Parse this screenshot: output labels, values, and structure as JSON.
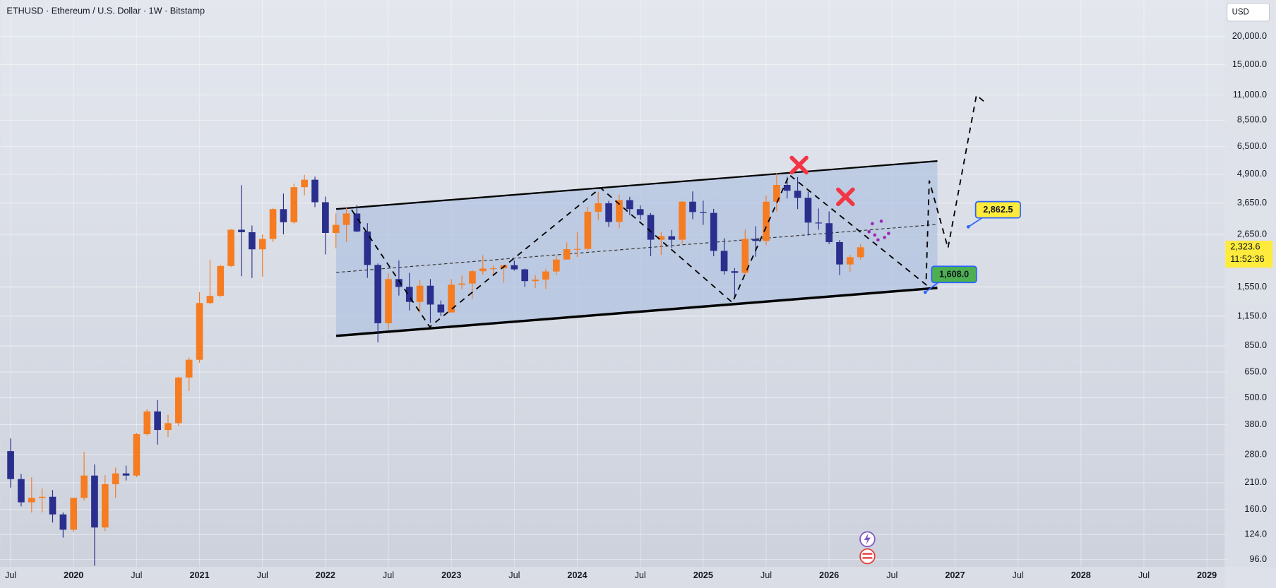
{
  "chart_data": {
    "type": "candlestick",
    "title": "ETHUSD · Ethereum / U.S. Dollar · 1W · Bitstamp",
    "currency": "USD",
    "x": [
      "2019-07",
      "2019-08",
      "2019-09",
      "2019-10",
      "2019-11",
      "2019-12",
      "2020-01",
      "2020-02",
      "2020-03",
      "2020-04",
      "2020-05",
      "2020-06",
      "2020-07",
      "2020-08",
      "2020-09",
      "2020-10",
      "2020-11",
      "2020-12",
      "2021-01",
      "2021-02",
      "2021-03",
      "2021-04",
      "2021-05",
      "2021-06",
      "2021-07",
      "2021-08",
      "2021-09",
      "2021-10",
      "2021-11",
      "2021-12",
      "2022-01",
      "2022-02",
      "2022-03",
      "2022-04",
      "2022-05",
      "2022-06",
      "2022-07",
      "2022-08",
      "2022-09",
      "2022-10",
      "2022-11",
      "2022-12",
      "2023-01",
      "2023-02",
      "2023-03",
      "2023-04",
      "2023-05",
      "2023-06",
      "2023-07",
      "2023-08",
      "2023-09",
      "2023-10",
      "2023-11",
      "2023-12",
      "2024-01",
      "2024-02",
      "2024-03",
      "2024-04",
      "2024-05",
      "2024-06",
      "2024-07",
      "2024-08",
      "2024-09",
      "2024-10",
      "2024-11",
      "2024-12",
      "2025-01",
      "2025-02",
      "2025-03",
      "2025-04",
      "2025-05",
      "2025-06",
      "2025-07",
      "2025-08",
      "2025-09",
      "2025-10",
      "2025-11",
      "2025-12",
      "2026-01",
      "2026-02",
      "2026-03",
      "2026-04"
    ],
    "open": [
      290,
      218,
      172,
      180,
      182,
      152,
      130,
      180,
      226,
      133,
      207,
      231,
      226,
      345,
      435,
      360,
      386,
      615,
      737,
      1315,
      1415,
      1920,
      2780,
      2710,
      2275,
      2530,
      3430,
      3000,
      4290,
      4630,
      3680,
      2690,
      2920,
      3280,
      2730,
      1940,
      1070,
      1680,
      1550,
      1330,
      1570,
      1295,
      1195,
      1585,
      1605,
      1820,
      1870,
      1875,
      1935,
      1855,
      1645,
      1670,
      1815,
      2050,
      2280,
      2285,
      3340,
      3640,
      3010,
      3760,
      3430,
      3230,
      2510,
      2600,
      2510,
      3700,
      3330,
      3300,
      2240,
      1820,
      1790,
      2530,
      2480,
      3700,
      4390,
      4140,
      3850,
      2990,
      2970,
      2450,
      1950,
      2100
    ],
    "high": [
      330,
      230,
      222,
      198,
      195,
      155,
      180,
      287,
      253,
      227,
      245,
      250,
      350,
      445,
      488,
      420,
      620,
      755,
      1470,
      2040,
      1940,
      2800,
      4380,
      2900,
      2650,
      3470,
      4020,
      4450,
      4870,
      4780,
      3900,
      3280,
      3480,
      3580,
      2970,
      1970,
      1780,
      2030,
      1790,
      1660,
      1680,
      1350,
      1680,
      1740,
      1850,
      2140,
      1930,
      1940,
      2030,
      1870,
      1750,
      1865,
      2130,
      2440,
      2720,
      3520,
      4090,
      3730,
      3980,
      3890,
      3560,
      3300,
      2720,
      2770,
      3720,
      4110,
      3740,
      3440,
      2550,
      1880,
      2780,
      2880,
      3940,
      4950,
      4770,
      4760,
      4100,
      3450,
      3350,
      2500,
      2150,
      2400
    ],
    "low": [
      200,
      165,
      155,
      155,
      140,
      120,
      127,
      175,
      90,
      128,
      180,
      215,
      222,
      340,
      310,
      335,
      375,
      535,
      715,
      1300,
      1400,
      1900,
      1730,
      1700,
      1720,
      2450,
      2650,
      2960,
      3950,
      3500,
      2160,
      2300,
      2450,
      2710,
      1700,
      880,
      1000,
      1420,
      1220,
      1190,
      1075,
      1150,
      1190,
      1520,
      1370,
      1760,
      1760,
      1620,
      1830,
      1550,
      1530,
      1520,
      1750,
      2050,
      2100,
      2240,
      3060,
      2860,
      2820,
      3230,
      3080,
      2120,
      2150,
      2310,
      2400,
      3100,
      2920,
      2120,
      1760,
      1390,
      1750,
      2110,
      2370,
      3350,
      3820,
      3430,
      2620,
      2780,
      2400,
      1750,
      1800,
      2050
    ],
    "close": [
      218,
      172,
      180,
      182,
      152,
      130,
      180,
      226,
      133,
      207,
      231,
      226,
      345,
      435,
      360,
      386,
      615,
      737,
      1315,
      1415,
      1920,
      2780,
      2710,
      2275,
      2530,
      3430,
      3000,
      4290,
      4630,
      3680,
      2690,
      2920,
      3280,
      2730,
      1940,
      1070,
      1680,
      1550,
      1330,
      1570,
      1295,
      1195,
      1585,
      1605,
      1820,
      1870,
      1875,
      1935,
      1855,
      1645,
      1670,
      1815,
      2050,
      2280,
      2285,
      3340,
      3640,
      3010,
      3760,
      3430,
      3230,
      2510,
      2600,
      2510,
      3700,
      3330,
      3300,
      2240,
      1820,
      1790,
      2530,
      2480,
      3700,
      4390,
      4140,
      3850,
      2990,
      2970,
      2450,
      1950,
      2100,
      2323.6
    ],
    "up_color": "#f57c21",
    "down_color": "#2a2e8c",
    "log_scale": true,
    "grid": true,
    "xlim": [
      "2019-06",
      "2029-03"
    ],
    "xticks": [
      {
        "value": "2019-07",
        "label": "Jul"
      },
      {
        "value": "2020-01",
        "label": "2020"
      },
      {
        "value": "2020-07",
        "label": "Jul"
      },
      {
        "value": "2021-01",
        "label": "2021"
      },
      {
        "value": "2021-07",
        "label": "Jul"
      },
      {
        "value": "2022-01",
        "label": "2022"
      },
      {
        "value": "2022-07",
        "label": "Jul"
      },
      {
        "value": "2023-01",
        "label": "2023"
      },
      {
        "value": "2023-07",
        "label": "Jul"
      },
      {
        "value": "2024-01",
        "label": "2024"
      },
      {
        "value": "2024-07",
        "label": "Jul"
      },
      {
        "value": "2025-01",
        "label": "2025"
      },
      {
        "value": "2025-07",
        "label": "Jul"
      },
      {
        "value": "2026-01",
        "label": "2026"
      },
      {
        "value": "2026-07",
        "label": "Jul"
      },
      {
        "value": "2027-01",
        "label": "2027"
      },
      {
        "value": "2027-07",
        "label": "Jul"
      },
      {
        "value": "2028-01",
        "label": "2028"
      },
      {
        "value": "2028-07",
        "label": "Jul"
      },
      {
        "value": "2029-01",
        "label": "2029"
      }
    ],
    "ylim": [
      89,
      29000
    ],
    "yticks": [
      {
        "value": 20000,
        "label": "20,000.0"
      },
      {
        "value": 15000,
        "label": "15,000.0"
      },
      {
        "value": 11000,
        "label": "11,000.0"
      },
      {
        "value": 8500,
        "label": "8,500.0"
      },
      {
        "value": 6500,
        "label": "6,500.0"
      },
      {
        "value": 4900,
        "label": "4,900.0"
      },
      {
        "value": 3650,
        "label": "3,650.0"
      },
      {
        "value": 2650,
        "label": "2,650.0"
      },
      {
        "value": 1550,
        "label": "1,550.0"
      },
      {
        "value": 1150,
        "label": "1,150.0"
      },
      {
        "value": 850,
        "label": "850.0"
      },
      {
        "value": 650,
        "label": "650.0"
      },
      {
        "value": 500,
        "label": "500.0"
      },
      {
        "value": 380,
        "label": "380.0"
      },
      {
        "value": 280,
        "label": "280.0"
      },
      {
        "value": 210,
        "label": "210.0"
      },
      {
        "value": 160,
        "label": "160.0"
      },
      {
        "value": 124,
        "label": "124.0"
      },
      {
        "value": 96,
        "label": "96.0"
      }
    ],
    "price_labels": [
      {
        "value": 2862.5,
        "label": "2,862.5",
        "color": "#ffeb3b"
      },
      {
        "value": 1608.0,
        "label": "1,608.0",
        "color": "#4caf50"
      }
    ],
    "last_price": {
      "value": 2323.6,
      "label": "2,323.6",
      "countdown": "11:52:36",
      "color": "#ffeb3b"
    }
  }
}
